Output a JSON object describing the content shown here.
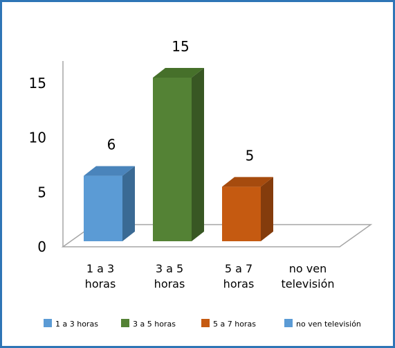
{
  "chart_data": {
    "type": "bar",
    "title": "",
    "xlabel": "",
    "ylabel": "",
    "categories": [
      "1 a 3 horas",
      "3 a 5 horas",
      "5 a 7 horas",
      "no ven televisión"
    ],
    "category_lines": [
      [
        "1 a 3",
        "horas"
      ],
      [
        "3 a 5",
        "horas"
      ],
      [
        "5 a 7",
        "horas"
      ],
      [
        "no ven",
        "televisión"
      ]
    ],
    "values": [
      6,
      15,
      5,
      0
    ],
    "data_labels": [
      "6",
      "15",
      "5",
      ""
    ],
    "colors": [
      "#5b9bd5",
      "#548235",
      "#c55a11",
      "#5b9bd5"
    ],
    "side_colors": [
      "#3a6a94",
      "#385723",
      "#843c0c",
      "#3a6a94"
    ],
    "top_colors": [
      "#4a84bb",
      "#46702a",
      "#a64b0e",
      "#4a84bb"
    ],
    "yticks": [
      "0",
      "5",
      "10",
      "15"
    ],
    "ylim": [
      0,
      15
    ],
    "grid": false,
    "legend_position": "bottom",
    "legend": [
      "1 a 3 horas",
      "3 a 5 horas",
      "5 a 7 horas",
      "no ven televisión"
    ]
  }
}
